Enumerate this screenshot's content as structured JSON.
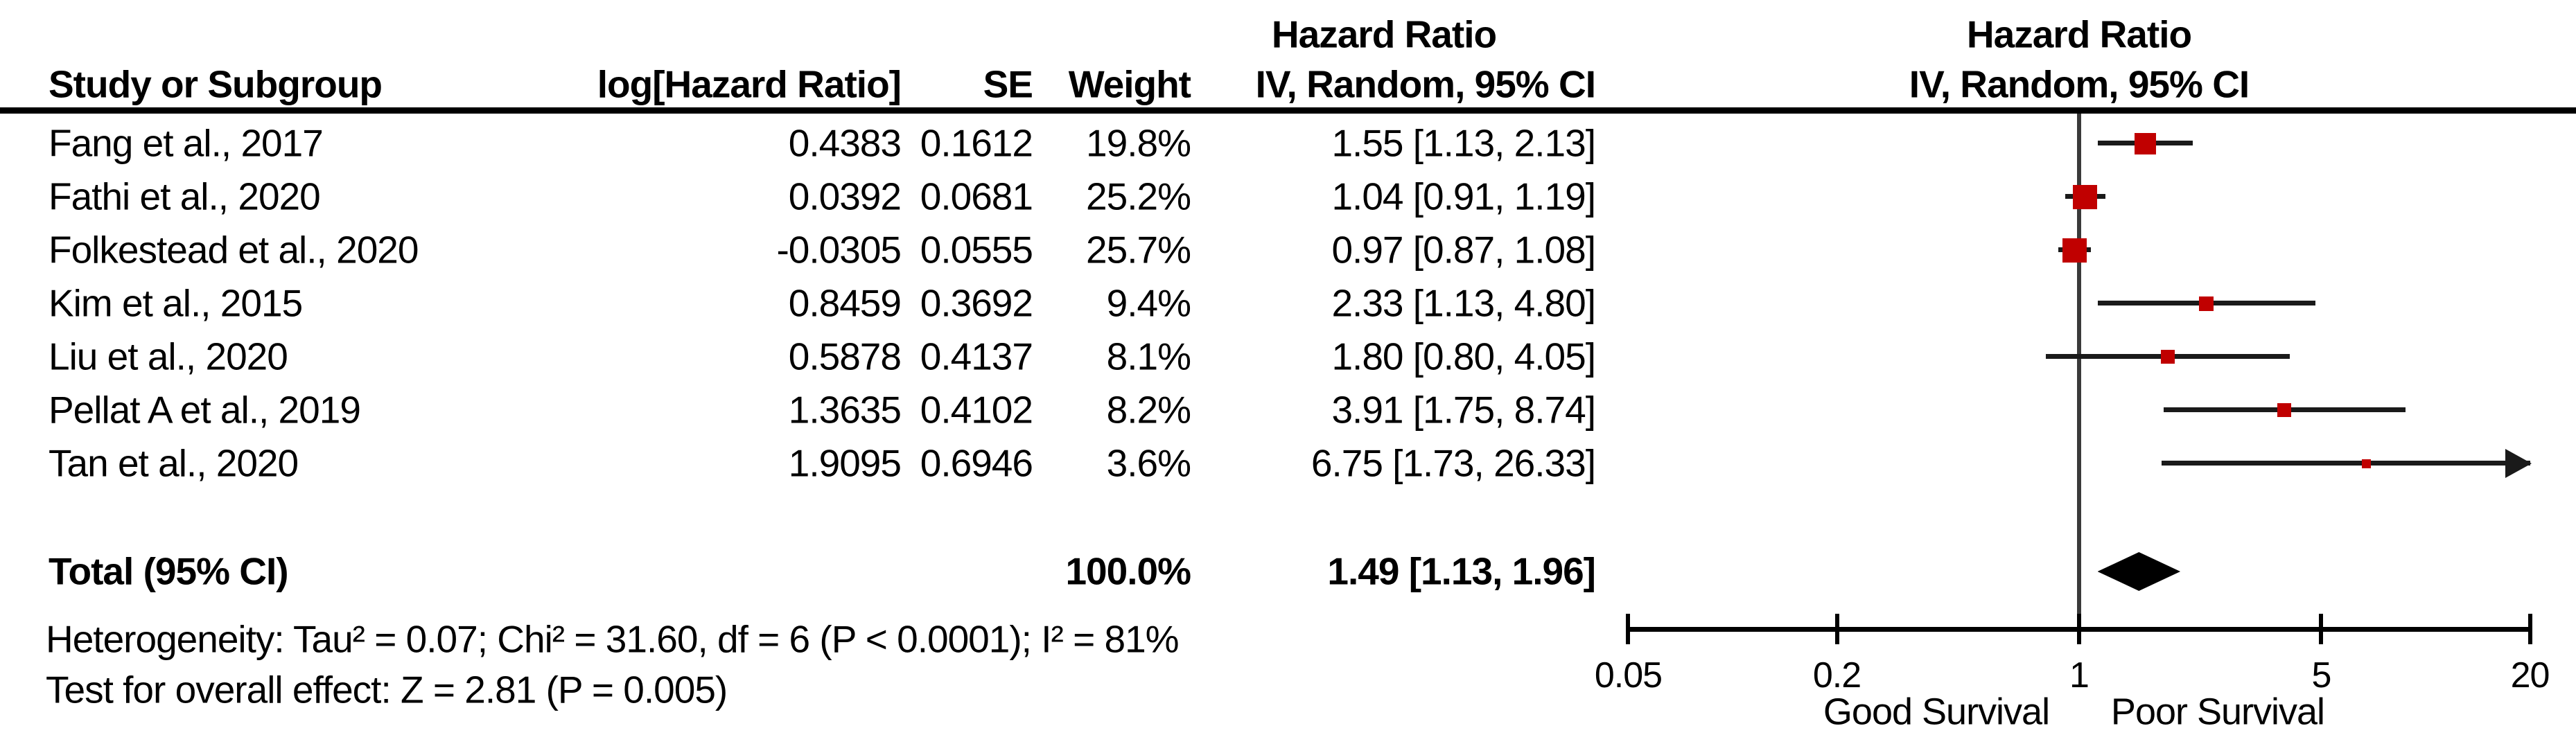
{
  "header": {
    "left_group_title": "Hazard Ratio",
    "right_group_title": "Hazard Ratio",
    "col_study": "Study or Subgroup",
    "col_loghr": "log[Hazard Ratio]",
    "col_se": "SE",
    "col_weight": "Weight",
    "col_ci": "IV, Random, 95% CI",
    "col_ci_right": "IV, Random, 95% CI"
  },
  "chart_data": {
    "type": "forest",
    "scale": "log10",
    "axis": {
      "min": 0.05,
      "max": 20,
      "ticks": [
        "0.05",
        "0.2",
        "1",
        "5",
        "20"
      ],
      "tick_values": [
        0.05,
        0.2,
        1,
        5,
        20
      ],
      "left_label": "Good Survival",
      "right_label": "Poor Survival"
    },
    "studies": [
      {
        "study": "Fang et al., 2017",
        "log_hr": "0.4383",
        "se": "0.1612",
        "weight": "19.8%",
        "weight_value": 19.8,
        "ci_text": "1.55 [1.13, 2.13]",
        "hr": 1.55,
        "ci_low": 1.13,
        "ci_high": 2.13
      },
      {
        "study": "Fathi et al., 2020",
        "log_hr": "0.0392",
        "se": "0.0681",
        "weight": "25.2%",
        "weight_value": 25.2,
        "ci_text": "1.04 [0.91, 1.19]",
        "hr": 1.04,
        "ci_low": 0.91,
        "ci_high": 1.19
      },
      {
        "study": "Folkestead et al., 2020",
        "log_hr": "-0.0305",
        "se": "0.0555",
        "weight": "25.7%",
        "weight_value": 25.7,
        "ci_text": "0.97 [0.87, 1.08]",
        "hr": 0.97,
        "ci_low": 0.87,
        "ci_high": 1.08
      },
      {
        "study": "Kim et al., 2015",
        "log_hr": "0.8459",
        "se": "0.3692",
        "weight": "9.4%",
        "weight_value": 9.4,
        "ci_text": "2.33 [1.13, 4.80]",
        "hr": 2.33,
        "ci_low": 1.13,
        "ci_high": 4.8
      },
      {
        "study": "Liu et al., 2020",
        "log_hr": "0.5878",
        "se": "0.4137",
        "weight": "8.1%",
        "weight_value": 8.1,
        "ci_text": "1.80 [0.80, 4.05]",
        "hr": 1.8,
        "ci_low": 0.8,
        "ci_high": 4.05
      },
      {
        "study": "Pellat A et al., 2019",
        "log_hr": "1.3635",
        "se": "0.4102",
        "weight": "8.2%",
        "weight_value": 8.2,
        "ci_text": "3.91 [1.75, 8.74]",
        "hr": 3.91,
        "ci_low": 1.75,
        "ci_high": 8.74
      },
      {
        "study": "Tan et al., 2020",
        "log_hr": "1.9095",
        "se": "0.6946",
        "weight": "3.6%",
        "weight_value": 3.6,
        "ci_text": "6.75 [1.73, 26.33]",
        "hr": 6.75,
        "ci_low": 1.73,
        "ci_high": 26.33
      }
    ],
    "total": {
      "label": "Total (95% CI)",
      "weight": "100.0%",
      "ci_text": "1.49 [1.13, 1.96]",
      "hr": 1.49,
      "ci_low": 1.13,
      "ci_high": 1.96
    },
    "footnotes": {
      "heterogeneity": "Heterogeneity: Tau² = 0.07; Chi² = 31.60, df = 6 (P < 0.0001); I² = 81%",
      "overall_effect": "Test for overall effect: Z = 2.81 (P = 0.005)"
    },
    "colors": {
      "marker": "#c00000",
      "ci_line": "#1a1a1a",
      "diamond": "#000000",
      "axis": "#000000",
      "guide_line": "#3a3a3a"
    }
  }
}
